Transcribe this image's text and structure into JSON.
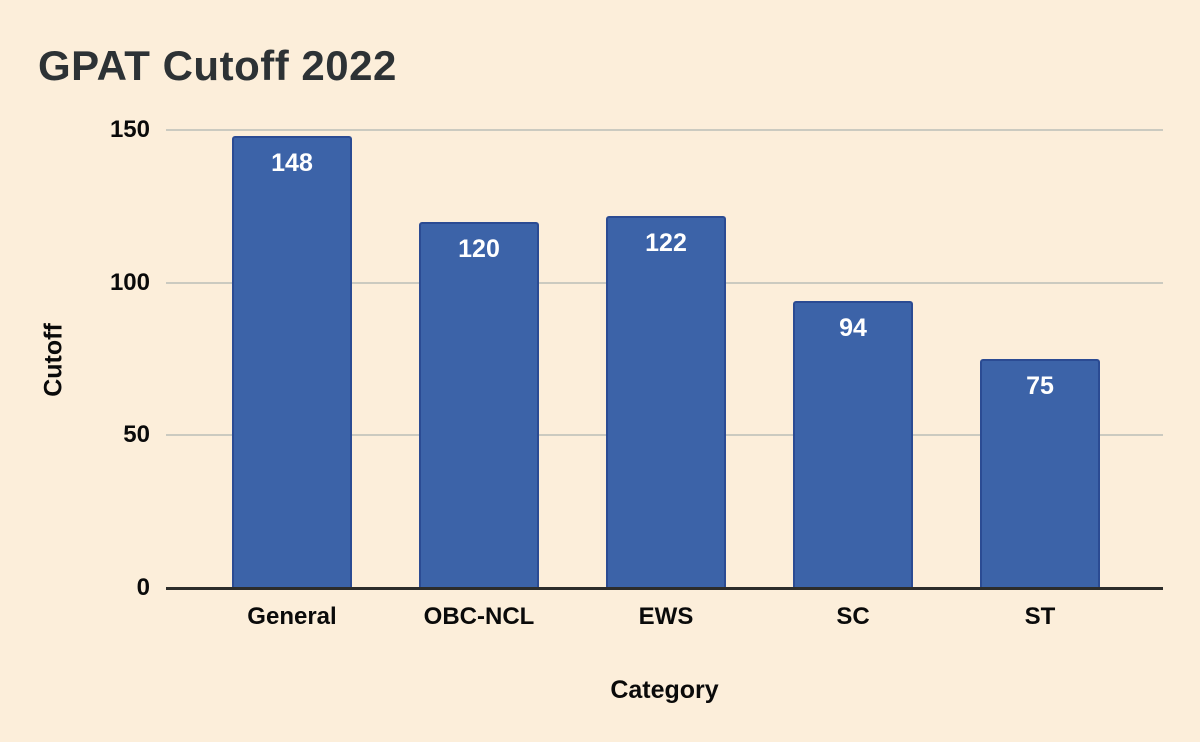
{
  "page": {
    "background_color": "#FCEEDA"
  },
  "chart_data": {
    "type": "bar",
    "title": "GPAT Cutoff 2022",
    "xlabel": "Category",
    "ylabel": "Cutoff",
    "categories": [
      "General",
      "OBC-NCL",
      "EWS",
      "SC",
      "ST"
    ],
    "values": [
      148,
      120,
      122,
      94,
      75
    ],
    "ylim": [
      0,
      150
    ],
    "yticks": [
      0,
      50,
      100,
      150
    ],
    "grid": true,
    "legend": false,
    "bar_color": "#3C63A8",
    "bar_border_color": "#2B4B93",
    "value_label_color": "#FFFFFF",
    "gridline_color": "#CBCAC0",
    "axis_line_color": "#2D2D2B",
    "text_color": "#0A0A0A",
    "title_color": "#2D3235"
  }
}
